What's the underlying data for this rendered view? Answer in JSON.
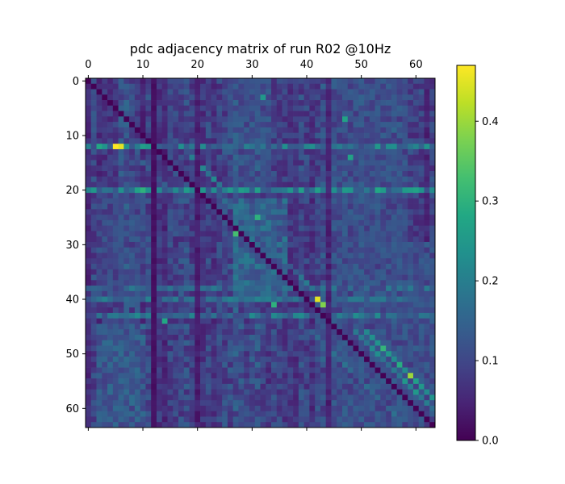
{
  "chart_data": {
    "type": "heatmap",
    "title": "pdc adjacency matrix of run R02 @10Hz",
    "n": 64,
    "x_ticks": [
      0,
      10,
      20,
      30,
      40,
      50,
      60
    ],
    "y_ticks": [
      0,
      10,
      20,
      30,
      40,
      50,
      60
    ],
    "x_tick_position": "top",
    "colormap": "viridis",
    "colorbar": {
      "vmin": 0.0,
      "vmax": 0.47,
      "ticks": [
        0.0,
        0.1,
        0.2,
        0.3,
        0.4
      ],
      "tick_labels": [
        "0.0",
        "0.1",
        "0.2",
        "0.3",
        "0.4"
      ],
      "position": "right"
    },
    "diagonal_value": 0.0,
    "base_level": 0.08,
    "hot_rows": [
      {
        "row": 12,
        "value": 0.22
      },
      {
        "row": 20,
        "value": 0.24
      },
      {
        "row": 38,
        "value": 0.17
      },
      {
        "row": 40,
        "value": 0.18
      },
      {
        "row": 43,
        "value": 0.2
      }
    ],
    "weak_columns": [
      {
        "col": 12,
        "value": 0.02
      },
      {
        "col": 20,
        "value": 0.04
      },
      {
        "col": 44,
        "value": 0.05
      }
    ],
    "peaks": [
      {
        "row": 12,
        "col": 5,
        "value": 0.47
      },
      {
        "row": 12,
        "col": 6,
        "value": 0.45
      },
      {
        "row": 40,
        "col": 42,
        "value": 0.45
      },
      {
        "row": 41,
        "col": 43,
        "value": 0.38
      },
      {
        "row": 54,
        "col": 59,
        "value": 0.4
      },
      {
        "row": 20,
        "col": 10,
        "value": 0.3
      },
      {
        "row": 12,
        "col": 2,
        "value": 0.28
      },
      {
        "row": 12,
        "col": 10,
        "value": 0.26
      },
      {
        "row": 12,
        "col": 53,
        "value": 0.25
      },
      {
        "row": 28,
        "col": 27,
        "value": 0.33
      },
      {
        "row": 25,
        "col": 31,
        "value": 0.3
      },
      {
        "row": 41,
        "col": 34,
        "value": 0.3
      },
      {
        "row": 44,
        "col": 14,
        "value": 0.28
      },
      {
        "row": 7,
        "col": 47,
        "value": 0.27
      },
      {
        "row": 14,
        "col": 48,
        "value": 0.27
      },
      {
        "row": 20,
        "col": 53,
        "value": 0.28
      },
      {
        "row": 3,
        "col": 32,
        "value": 0.25
      }
    ],
    "bands": [
      {
        "offset": 5,
        "rows": [
          46,
          62
        ],
        "value": 0.27
      },
      {
        "offset": 3,
        "rows": [
          46,
          62
        ],
        "value": 0.22
      },
      {
        "offset": 5,
        "rows": [
          14,
          20
        ],
        "value": 0.22
      },
      {
        "offset": 3,
        "rows": [
          22,
          38
        ],
        "value": 0.17
      }
    ],
    "blocks": [
      {
        "rows": [
          22,
          40
        ],
        "cols": [
          27,
          36
        ],
        "value": 0.16
      },
      {
        "rows": [
          45,
          63
        ],
        "cols": [
          2,
          10
        ],
        "value": 0.14
      },
      {
        "rows": [
          20,
          40
        ],
        "cols": [
          2,
          10
        ],
        "value": 0.11
      },
      {
        "rows": [
          0,
          20
        ],
        "cols": [
          26,
          33
        ],
        "value": 0.12
      },
      {
        "rows": [
          0,
          30
        ],
        "cols": [
          45,
          58
        ],
        "value": 0.12
      },
      {
        "rows": [
          30,
          63
        ],
        "cols": [
          44,
          63
        ],
        "value": 0.12
      }
    ]
  }
}
